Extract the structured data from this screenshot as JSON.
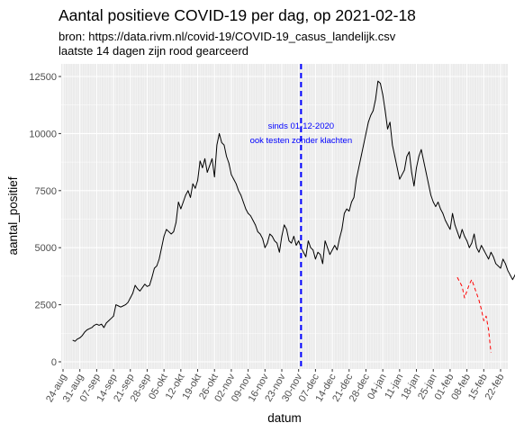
{
  "chart_data": {
    "type": "line",
    "title": "Aantal positieve COVID-19 per dag, op 2021-02-18",
    "subtitle_lines": [
      "bron: https://data.rivm.nl/covid-19/COVID-19_casus_landelijk.csv",
      "laatste 14 dagen zijn rood gearceerd"
    ],
    "xlabel": "datum",
    "ylabel": "aantal_positief",
    "x_ticks": [
      "24-aug",
      "31-aug",
      "07-sep",
      "14-sep",
      "21-sep",
      "28-sep",
      "05-okt",
      "12-okt",
      "19-okt",
      "26-okt",
      "02-nov",
      "09-nov",
      "16-nov",
      "23-nov",
      "30-nov",
      "07-dec",
      "14-dec",
      "21-dec",
      "28-dec",
      "04-jan",
      "11-jan",
      "18-jan",
      "25-jan",
      "01-feb",
      "08-feb",
      "15-feb",
      "22-feb"
    ],
    "y_ticks": [
      0,
      2500,
      5000,
      7500,
      10000,
      12500
    ],
    "ylim": [
      0,
      12600
    ],
    "grid": true,
    "vline": {
      "x": "2020-12-01",
      "color": "#0000ff",
      "style": "dashed",
      "label_lines": [
        "sinds 01-12-2020",
        "ook testen zonder klachten"
      ]
    },
    "series": [
      {
        "color": "#000000",
        "style": "solid",
        "x_start": "2020-08-28",
        "values": [
          950,
          900,
          1000,
          1050,
          1150,
          1300,
          1400,
          1450,
          1500,
          1600,
          1650,
          1600,
          1650,
          1500,
          1700,
          1800,
          1900,
          2000,
          2500,
          2450,
          2400,
          2450,
          2500,
          2600,
          2800,
          3000,
          3350,
          3200,
          3100,
          3250,
          3400,
          3300,
          3350,
          3700,
          4100,
          4200,
          4500,
          5000,
          5500,
          5800,
          5700,
          5600,
          5700,
          6100,
          7000,
          6700,
          7000,
          7300,
          7500,
          7200,
          7800,
          7600,
          7950,
          8800,
          8500,
          8900,
          8300,
          8600,
          8900,
          8100,
          9500,
          10000,
          9600,
          9500,
          9000,
          8700,
          8200,
          8000,
          7800,
          7500,
          7300,
          7000,
          6700,
          6500,
          6400,
          6200,
          6000,
          5700,
          5600,
          5400,
          5000,
          5200,
          5600,
          5500,
          5300,
          5200,
          4800,
          5500,
          6000,
          5800,
          5300,
          5200,
          5500,
          5100,
          5300,
          5000,
          4800,
          4600,
          5300,
          5000,
          4900,
          4500,
          4800,
          4700,
          4300,
          5300,
          5000,
          4700,
          4900,
          5100,
          4900,
          5400,
          5800,
          6500,
          6700,
          6600,
          7000,
          7200,
          8000,
          8500,
          9000,
          9500,
          10000,
          10500,
          10800,
          11000,
          11500,
          12300,
          12200,
          11700,
          11000,
          10200,
          10500,
          9500,
          9000,
          8500,
          8000,
          8200,
          8400,
          9000,
          9200,
          8300,
          7700,
          8500,
          9000,
          9300,
          8800,
          8300,
          7800,
          7300,
          7000,
          6800,
          7000,
          6700,
          6500,
          6200,
          6000,
          5800,
          6500,
          6000,
          5700,
          5400,
          5800,
          5500,
          5300,
          5000,
          5200,
          5600,
          5000,
          4800,
          5100,
          4900,
          4700,
          4500,
          4800,
          4600,
          4300,
          4200,
          4100,
          4500,
          4300,
          4000,
          3800,
          3600,
          3800,
          4100,
          3800,
          3700,
          3500,
          3400
        ]
      },
      {
        "color": "#ff0000",
        "style": "dashed",
        "x_start": "2021-02-04",
        "values": [
          3700,
          3500,
          3300,
          2800,
          3100,
          3400,
          3600,
          3300,
          3000,
          2700,
          2300,
          1800,
          2000,
          1400,
          400
        ]
      }
    ]
  }
}
